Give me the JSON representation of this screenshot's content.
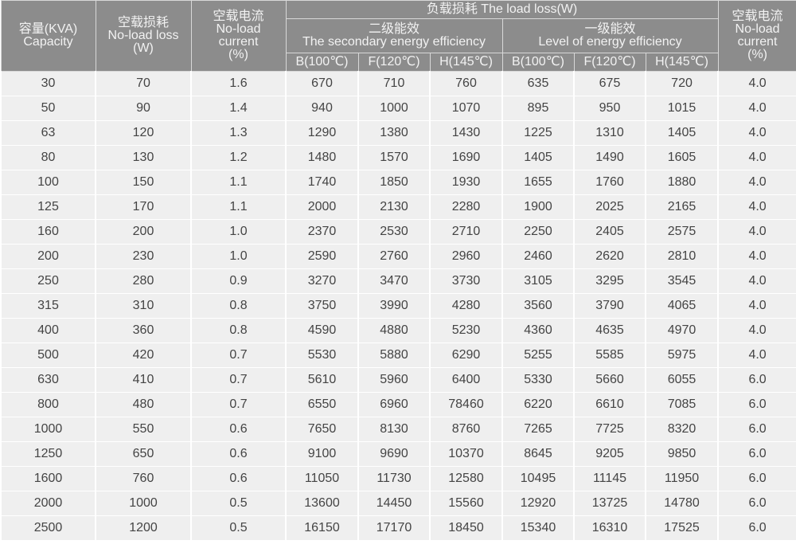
{
  "header": {
    "capacity": [
      "容量(KVA)",
      "Capacity"
    ],
    "no_load_loss": [
      "空载损耗",
      "No-load loss",
      "(W)"
    ],
    "no_load_current": [
      "空载电流",
      "No-load",
      "current",
      "(%)"
    ],
    "load_loss": "负载损耗 The load loss(W)",
    "secondary": [
      "二级能效",
      "The secondary energy efficiency"
    ],
    "first": [
      "一级能效",
      "Level of energy efficiency"
    ],
    "temps": [
      "B(100℃)",
      "F(120℃)",
      "H(145℃)",
      "B(100℃)",
      "F(120℃)",
      "H(145℃)"
    ],
    "no_load_current_last": [
      "空载电流",
      "No-load",
      "current",
      "(%)"
    ]
  },
  "rows": [
    [
      "30",
      "70",
      "1.6",
      "670",
      "710",
      "760",
      "635",
      "675",
      "720",
      "4.0"
    ],
    [
      "50",
      "90",
      "1.4",
      "940",
      "1000",
      "1070",
      "895",
      "950",
      "1015",
      "4.0"
    ],
    [
      "63",
      "120",
      "1.3",
      "1290",
      "1380",
      "1430",
      "1225",
      "1310",
      "1405",
      "4.0"
    ],
    [
      "80",
      "130",
      "1.2",
      "1480",
      "1570",
      "1690",
      "1405",
      "1490",
      "1605",
      "4.0"
    ],
    [
      "100",
      "150",
      "1.1",
      "1740",
      "1850",
      "1930",
      "1655",
      "1760",
      "1880",
      "4.0"
    ],
    [
      "125",
      "170",
      "1.1",
      "2000",
      "2130",
      "2280",
      "1900",
      "2025",
      "2165",
      "4.0"
    ],
    [
      "160",
      "200",
      "1.0",
      "2370",
      "2530",
      "2710",
      "2250",
      "2405",
      "2575",
      "4.0"
    ],
    [
      "200",
      "230",
      "1.0",
      "2590",
      "2760",
      "2960",
      "2460",
      "2620",
      "2810",
      "4.0"
    ],
    [
      "250",
      "280",
      "0.9",
      "3270",
      "3470",
      "3730",
      "3105",
      "3295",
      "3545",
      "4.0"
    ],
    [
      "315",
      "310",
      "0.8",
      "3750",
      "3990",
      "4280",
      "3560",
      "3790",
      "4065",
      "4.0"
    ],
    [
      "400",
      "360",
      "0.8",
      "4590",
      "4880",
      "5230",
      "4360",
      "4635",
      "4970",
      "4.0"
    ],
    [
      "500",
      "420",
      "0.7",
      "5530",
      "5880",
      "6290",
      "5255",
      "5585",
      "5975",
      "4.0"
    ],
    [
      "630",
      "410",
      "0.7",
      "5610",
      "5960",
      "6400",
      "5330",
      "5660",
      "6055",
      "6.0"
    ],
    [
      "800",
      "480",
      "0.7",
      "6550",
      "6960",
      "78460",
      "6220",
      "6610",
      "7085",
      "6.0"
    ],
    [
      "1000",
      "550",
      "0.6",
      "7650",
      "8130",
      "8760",
      "7265",
      "7725",
      "8320",
      "6.0"
    ],
    [
      "1250",
      "650",
      "0.6",
      "9100",
      "9690",
      "10370",
      "8645",
      "9205",
      "9850",
      "6.0"
    ],
    [
      "1600",
      "760",
      "0.6",
      "11050",
      "11730",
      "12580",
      "10495",
      "11145",
      "11950",
      "6.0"
    ],
    [
      "2000",
      "1000",
      "0.5",
      "13600",
      "14450",
      "15560",
      "12920",
      "13725",
      "14780",
      "6.0"
    ],
    [
      "2500",
      "1200",
      "0.5",
      "16150",
      "17170",
      "18450",
      "15340",
      "16310",
      "17525",
      "6.0"
    ]
  ]
}
